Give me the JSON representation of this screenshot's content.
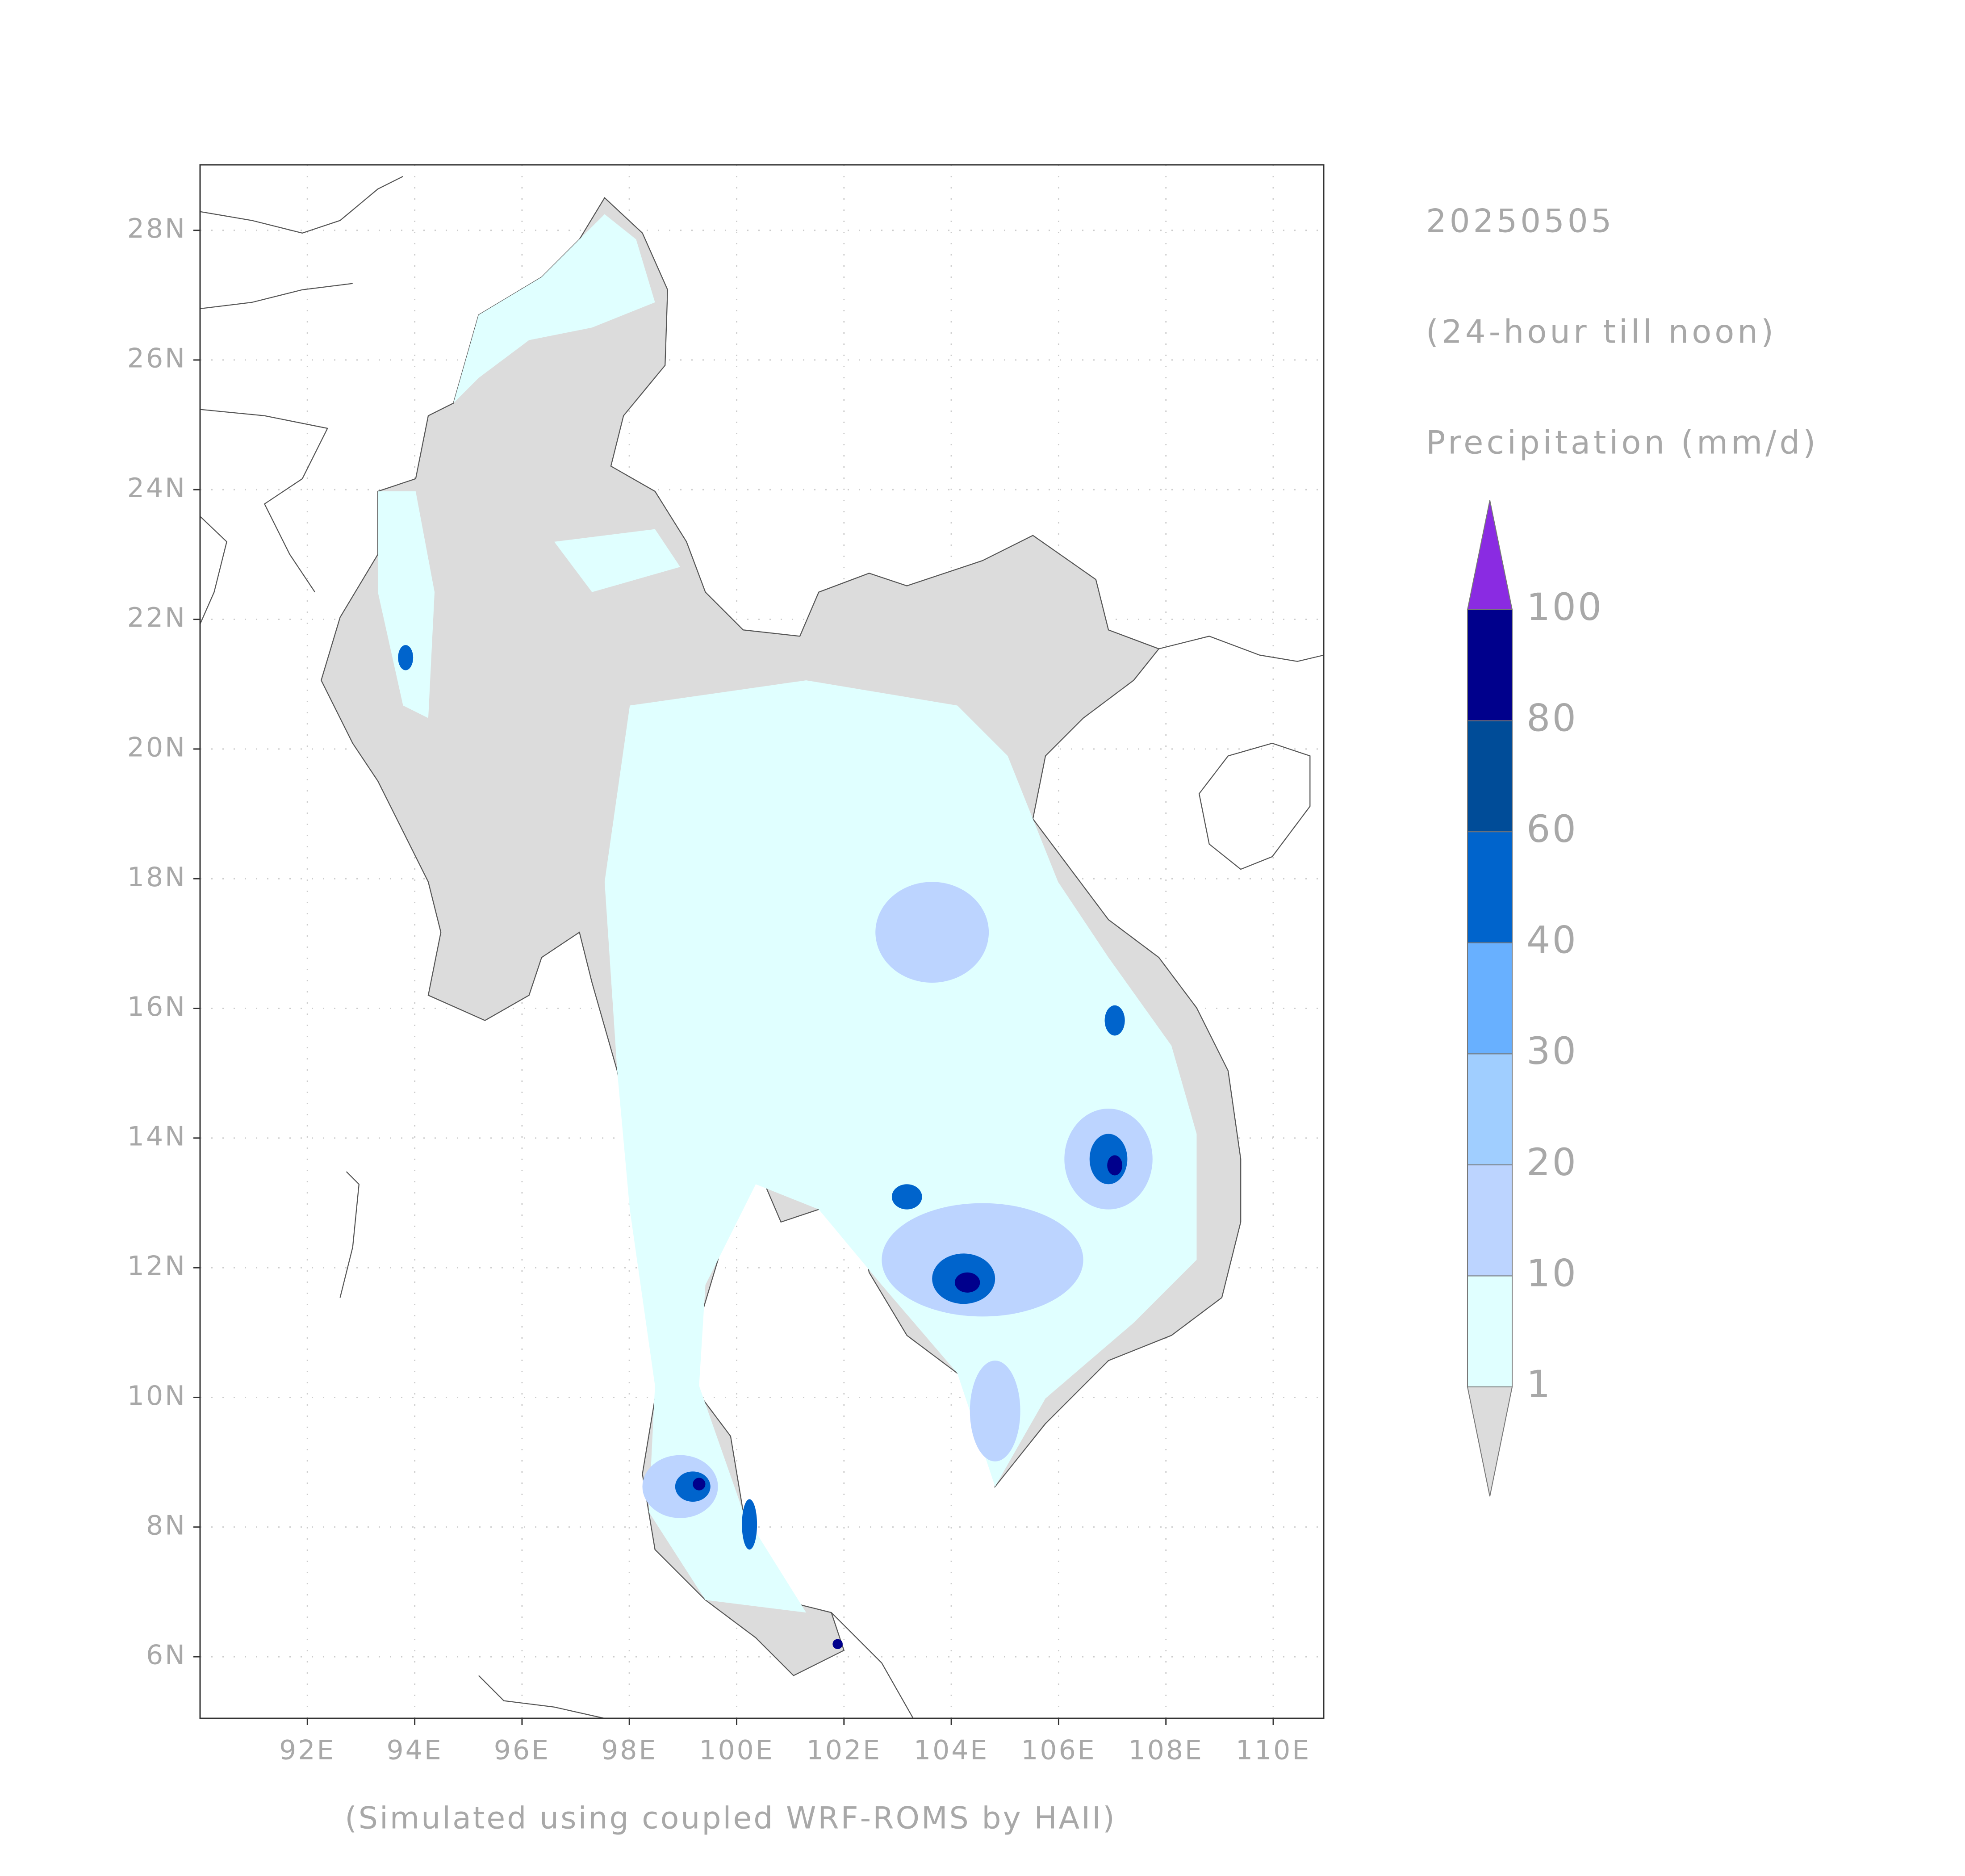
{
  "header": {
    "date": "20250505",
    "period": "(24-hour till noon)",
    "variable": "Precipitation (mm/d)"
  },
  "map": {
    "lon_range": [
      90,
      110.94
    ],
    "lat_range": [
      5.05,
      29.01
    ],
    "grid": true,
    "land_color": "#dcdcdc",
    "xticks": [
      {
        "value": 92,
        "label": "92E"
      },
      {
        "value": 94,
        "label": "94E"
      },
      {
        "value": 96,
        "label": "96E"
      },
      {
        "value": 98,
        "label": "98E"
      },
      {
        "value": 100,
        "label": "100E"
      },
      {
        "value": 102,
        "label": "102E"
      },
      {
        "value": 104,
        "label": "104E"
      },
      {
        "value": 106,
        "label": "106E"
      },
      {
        "value": 108,
        "label": "108E"
      },
      {
        "value": 110,
        "label": "110E"
      }
    ],
    "yticks": [
      {
        "value": 6,
        "label": "6N"
      },
      {
        "value": 8,
        "label": "8N"
      },
      {
        "value": 10,
        "label": "10N"
      },
      {
        "value": 12,
        "label": "12N"
      },
      {
        "value": 14,
        "label": "14N"
      },
      {
        "value": 16,
        "label": "16N"
      },
      {
        "value": 18,
        "label": "18N"
      },
      {
        "value": 20,
        "label": "20N"
      },
      {
        "value": 22,
        "label": "22N"
      },
      {
        "value": 24,
        "label": "24N"
      },
      {
        "value": 26,
        "label": "26N"
      },
      {
        "value": 28,
        "label": "28N"
      }
    ]
  },
  "colorbar": {
    "levels": [
      1,
      10,
      20,
      30,
      40,
      60,
      80,
      100
    ],
    "colors": [
      "#e0ffff",
      "#bcd4ff",
      "#a0ceff",
      "#68b0ff",
      "#0064cc",
      "#004c98",
      "#00008c"
    ],
    "under_color": "#dcdcdc",
    "over_color": "#8a2be2"
  },
  "footer": "(Simulated using coupled WRF-ROMS by HAII)"
}
